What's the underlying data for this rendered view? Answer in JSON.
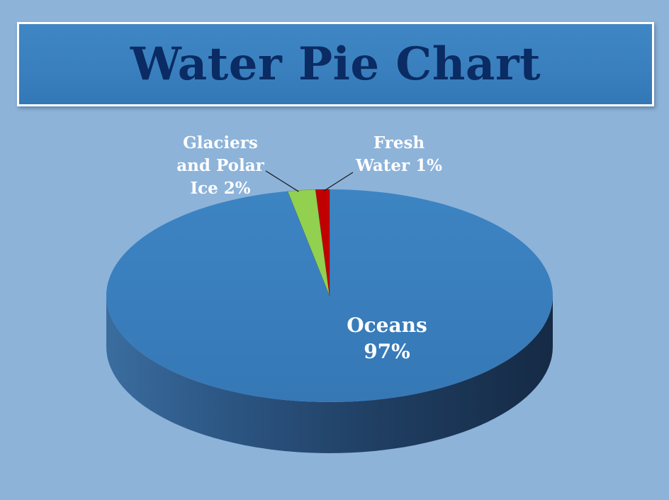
{
  "header": {
    "title": "Water Pie Chart"
  },
  "chart_data": {
    "type": "pie",
    "title": "Water Pie Chart",
    "categories": [
      "Oceans",
      "Glaciers and Polar Ice",
      "Fresh Water"
    ],
    "values": [
      97,
      2,
      1
    ],
    "unit": "%",
    "label_lines": [
      [
        "Oceans",
        "97%"
      ],
      [
        "Glaciers",
        "and Polar",
        "Ice 2%"
      ],
      [
        "Fresh",
        "Water 1%"
      ]
    ],
    "colors": [
      "#3a7fbd",
      "#92d050",
      "#c00000"
    ],
    "style": "3d",
    "legend": "none"
  },
  "colors": {
    "background": "#8db3d9",
    "title_box": "#3a80bf",
    "title_text": "#0a2b63",
    "oceans_side_dark": "#152a45"
  }
}
